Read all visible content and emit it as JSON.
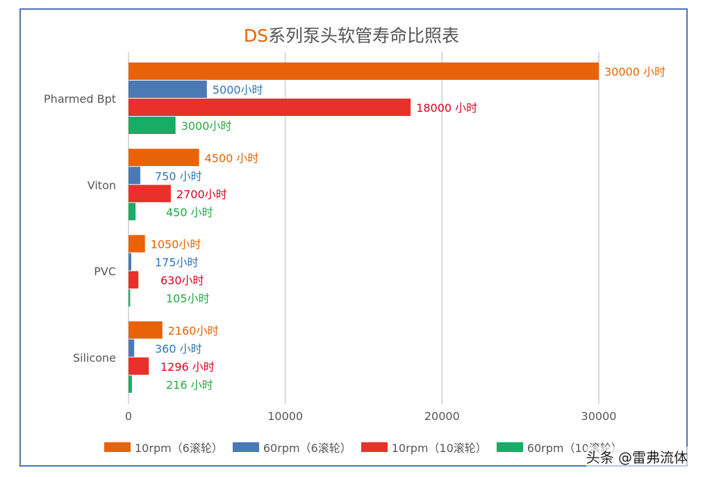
{
  "chart_data": {
    "type": "bar",
    "orientation": "horizontal",
    "title_prefix": "DS",
    "title_rest": "系列泵头软管寿命比照表",
    "categories": [
      "Pharmed Bpt",
      "Viton",
      "PVC",
      "Silicone"
    ],
    "xlim": [
      0,
      30000
    ],
    "xticks": [
      "0",
      "10000",
      "20000",
      "30000"
    ],
    "grid": true,
    "legend_position": "bottom",
    "series": [
      {
        "name": "10rpm（6滚轮）",
        "color": "#e8620a",
        "label_color": "#eb6100",
        "values": [
          30000,
          4500,
          1050,
          2160
        ],
        "labels": [
          "30000 小时",
          "4500 小时",
          "1050小时",
          "2160小时"
        ]
      },
      {
        "name": "60rpm（6滚轮）",
        "color": "#4a7ab5",
        "label_color": "#2e75b6",
        "values": [
          5000,
          750,
          175,
          360
        ],
        "labels": [
          "5000小时",
          "750 小时",
          "175小时",
          "360 小时"
        ]
      },
      {
        "name": "10rpm（10滚轮）",
        "color": "#e8312a",
        "label_color": "#e00020",
        "values": [
          18000,
          2700,
          630,
          1296
        ],
        "labels": [
          "18000 小时",
          "2700小时",
          "630小时",
          "1296 小时"
        ]
      },
      {
        "name": "60rpm（10滚轮）",
        "color": "#17ad64",
        "label_color": "#23a840",
        "values": [
          3000,
          450,
          105,
          216
        ],
        "labels": [
          "3000小时",
          "450 小时",
          "105小时",
          "216 小时"
        ]
      }
    ]
  },
  "watermark": "头条 @雷弗流体"
}
